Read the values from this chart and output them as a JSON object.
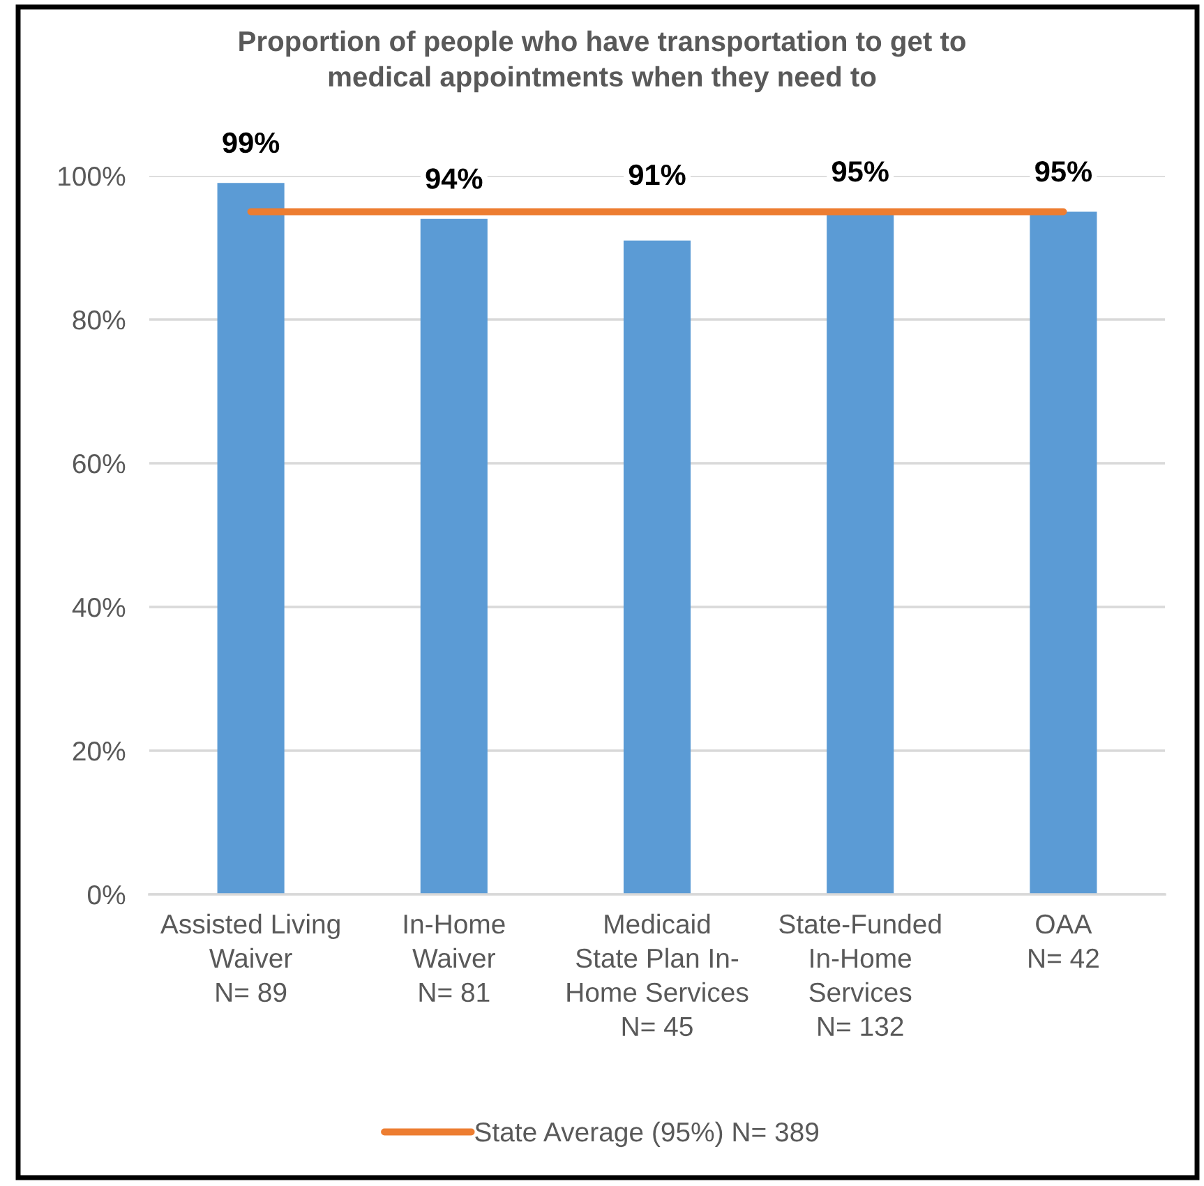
{
  "chart_data": {
    "type": "bar",
    "title": "Proportion of people who have transportation to get to\nmedical appointments when they need to",
    "categories": [
      "Assisted Living\nWaiver\nN= 89",
      "In-Home\nWaiver\nN= 81",
      "Medicaid\nState Plan In-\nHome Services\nN= 45",
      "State-Funded\nIn-Home\nServices\nN= 132",
      "OAA\nN= 42"
    ],
    "series": [
      {
        "color": "#5b9bd5",
        "values": [
          99,
          94,
          91,
          95,
          95
        ],
        "value_labels": [
          "99%",
          "94%",
          "91%",
          "95%",
          "95%"
        ]
      },
      {
        "type": "line",
        "name": "State Average (95%) N= 389",
        "color": "#ed7d31",
        "values": [
          95,
          95,
          95,
          95,
          95
        ]
      }
    ],
    "ylim": [
      0,
      100
    ],
    "yticks": [
      {
        "value": 0,
        "label": "0%"
      },
      {
        "value": 20,
        "label": "20%"
      },
      {
        "value": 40,
        "label": "40%"
      },
      {
        "value": 60,
        "label": "60%"
      },
      {
        "value": 80,
        "label": "80%"
      },
      {
        "value": 100,
        "label": "100%"
      }
    ],
    "grid": "y",
    "legend": "bottom"
  }
}
